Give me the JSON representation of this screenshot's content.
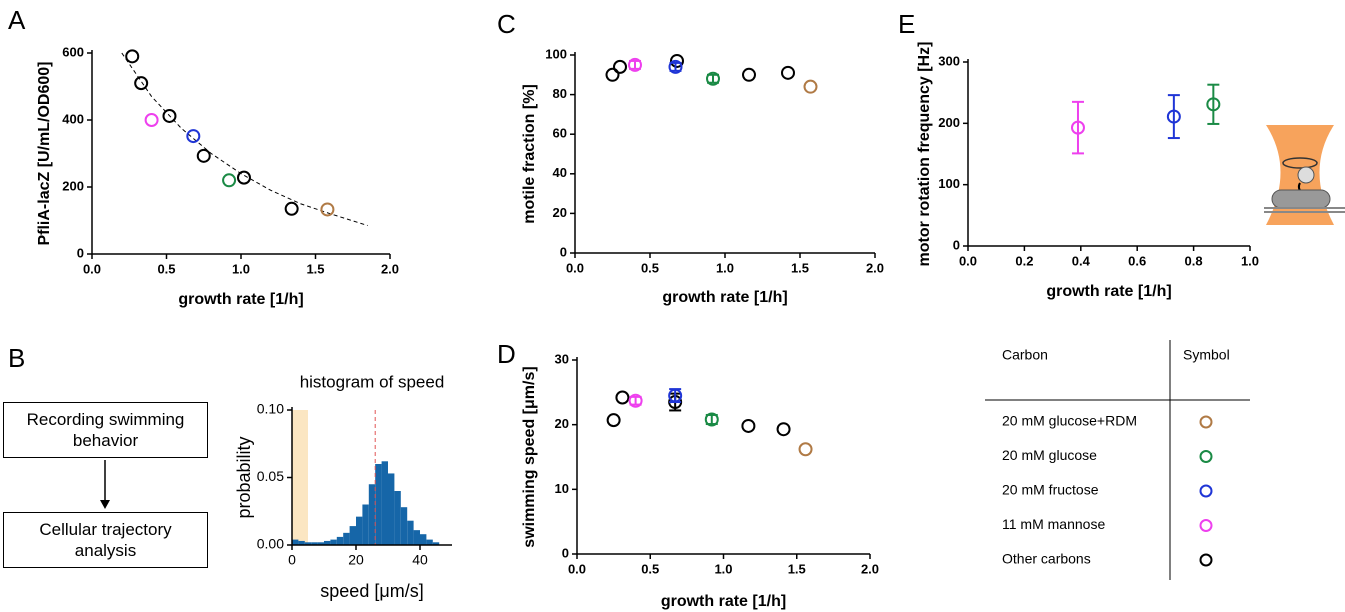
{
  "chart_data": [
    {
      "type": "scatter",
      "panel": "A",
      "xlabel": "growth rate [1/h]",
      "ylabel": "PfliA-lacZ [U/mL/OD600]",
      "xlim": [
        0,
        2
      ],
      "ylim": [
        0,
        600
      ],
      "xticks": [
        {
          "value": 0,
          "label": "0.0"
        },
        0.5,
        {
          "value": 1,
          "label": "1.0"
        },
        1.5,
        {
          "value": 2,
          "label": "2.0"
        }
      ],
      "yticks": [
        0,
        200,
        400,
        600
      ],
      "series": [
        {
          "color": "#000000",
          "x": [
            0.27,
            0.33,
            0.52,
            0.75,
            1.02,
            1.34
          ],
          "values": [
            590,
            510,
            412,
            293,
            228,
            135
          ]
        },
        {
          "color": "#ee40ee",
          "x": [
            0.4
          ],
          "values": [
            400
          ]
        },
        {
          "color": "#1f35d6",
          "x": [
            0.68
          ],
          "values": [
            352
          ]
        },
        {
          "color": "#1a8a45",
          "x": [
            0.92
          ],
          "values": [
            220
          ]
        },
        {
          "color": "#b07a45",
          "x": [
            1.58
          ],
          "values": [
            133
          ]
        }
      ],
      "fit": {
        "x": [
          0.2,
          0.4,
          0.6,
          0.8,
          1.0,
          1.2,
          1.4,
          1.6,
          1.85
        ],
        "values": [
          600,
          470,
          375,
          300,
          240,
          190,
          150,
          120,
          85
        ]
      }
    },
    {
      "type": "histogram",
      "panel": "B",
      "title": "histogram of speed",
      "xlabel": "speed [μm/s]",
      "ylabel": "probability",
      "xlim": [
        0,
        50
      ],
      "ylim": [
        0,
        0.1
      ],
      "xticks": [
        0,
        20,
        40
      ],
      "yticks": [
        {
          "value": 0,
          "label": "0.00"
        },
        0.05,
        {
          "value": 0.1,
          "label": "0.10"
        }
      ],
      "color": "#1666a8",
      "shade": [
        0,
        5
      ],
      "shade_color": "#fbe6c2",
      "vline": 26,
      "vline_color": "#e05555",
      "bins": [
        0,
        2,
        4,
        6,
        8,
        10,
        12,
        14,
        16,
        18,
        20,
        22,
        24,
        26,
        28,
        30,
        32,
        34,
        36,
        38,
        40,
        42,
        44,
        46
      ],
      "values": [
        0.004,
        0.003,
        0.002,
        0.002,
        0.002,
        0.003,
        0.004,
        0.006,
        0.009,
        0.014,
        0.021,
        0.03,
        0.045,
        0.06,
        0.062,
        0.053,
        0.04,
        0.028,
        0.018,
        0.011,
        0.008,
        0.004,
        0.002
      ]
    },
    {
      "type": "scatter",
      "panel": "C",
      "xlabel": "growth rate [1/h]",
      "ylabel": "motile fraction [%]",
      "xlim": [
        0,
        2
      ],
      "ylim": [
        0,
        100
      ],
      "xticks": [
        {
          "value": 0,
          "label": "0.0"
        },
        0.5,
        {
          "value": 1,
          "label": "1.0"
        },
        1.5,
        {
          "value": 2,
          "label": "2.0"
        }
      ],
      "yticks": [
        0,
        20,
        40,
        60,
        80,
        100
      ],
      "series": [
        {
          "color": "#000000",
          "x": [
            0.25,
            0.3,
            0.68,
            1.16,
            1.42
          ],
          "values": [
            90,
            94,
            97,
            90,
            91
          ]
        },
        {
          "color": "#ee40ee",
          "x": [
            0.4
          ],
          "values": [
            95
          ],
          "errors": [
            2
          ]
        },
        {
          "color": "#1f35d6",
          "x": [
            0.67
          ],
          "values": [
            94
          ],
          "errors": [
            2
          ]
        },
        {
          "color": "#1a8a45",
          "x": [
            0.92
          ],
          "values": [
            88
          ],
          "errors": [
            2
          ]
        },
        {
          "color": "#b07a45",
          "x": [
            1.57
          ],
          "values": [
            84
          ]
        }
      ]
    },
    {
      "type": "scatter",
      "panel": "D",
      "xlabel": "growth rate [1/h]",
      "ylabel": "swimming speed [μm/s]",
      "xlim": [
        0,
        2
      ],
      "ylim": [
        0,
        30
      ],
      "xticks": [
        {
          "value": 0,
          "label": "0.0"
        },
        0.5,
        {
          "value": 1,
          "label": "1.0"
        },
        1.5,
        {
          "value": 2,
          "label": "2.0"
        }
      ],
      "yticks": [
        0,
        10,
        20,
        30
      ],
      "series": [
        {
          "color": "#000000",
          "x": [
            0.25,
            0.31,
            0.67,
            1.17,
            1.41
          ],
          "values": [
            20.7,
            24.2,
            23.5,
            19.8,
            19.3
          ],
          "errors": [
            null,
            null,
            1.3,
            null,
            null
          ]
        },
        {
          "color": "#ee40ee",
          "x": [
            0.4
          ],
          "values": [
            23.7
          ],
          "errors": [
            0.6
          ]
        },
        {
          "color": "#1f35d6",
          "x": [
            0.67
          ],
          "values": [
            24.5
          ],
          "errors": [
            1
          ]
        },
        {
          "color": "#1a8a45",
          "x": [
            0.92
          ],
          "values": [
            20.8
          ],
          "errors": [
            0.7
          ]
        },
        {
          "color": "#b07a45",
          "x": [
            1.56
          ],
          "values": [
            16.2
          ]
        }
      ]
    },
    {
      "type": "scatter",
      "panel": "E",
      "xlabel": "growth rate [1/h]",
      "ylabel": "motor rotation frequency [Hz]",
      "xlim": [
        0,
        1
      ],
      "ylim": [
        0,
        300
      ],
      "xticks": [
        {
          "value": 0,
          "label": "0.0"
        },
        0.2,
        0.4,
        0.6,
        0.8,
        {
          "value": 1,
          "label": "1.0"
        }
      ],
      "yticks": [
        0,
        100,
        200,
        300
      ],
      "series": [
        {
          "color": "#ee40ee",
          "x": [
            0.39
          ],
          "values": [
            193
          ],
          "errors": [
            42
          ]
        },
        {
          "color": "#1f35d6",
          "x": [
            0.73
          ],
          "values": [
            211
          ],
          "errors": [
            35
          ]
        },
        {
          "color": "#1a8a45",
          "x": [
            0.87
          ],
          "values": [
            231
          ],
          "errors": [
            32
          ]
        }
      ]
    }
  ],
  "flow": {
    "steps": [
      "Recording swimming behavior",
      "Cellular trajectory analysis"
    ]
  },
  "legend_table": {
    "header": [
      "Carbon",
      "Symbol"
    ],
    "rows": [
      {
        "carbon": "20 mM glucose+RDM",
        "color": "#b07a45"
      },
      {
        "carbon": "20 mM glucose",
        "color": "#1a8a45"
      },
      {
        "carbon": "20 mM fructose",
        "color": "#1f35d6"
      },
      {
        "carbon": "11 mM mannose",
        "color": "#ee40ee"
      },
      {
        "carbon": "Other carbons",
        "color": "#000000"
      }
    ]
  }
}
